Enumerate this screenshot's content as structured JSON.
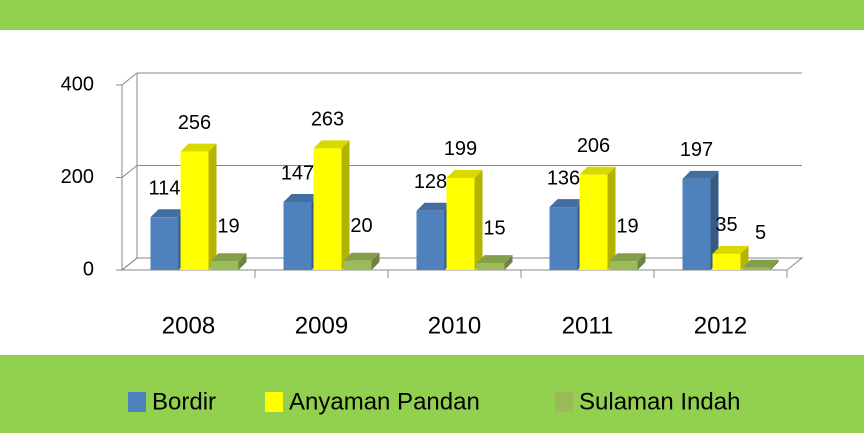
{
  "chart_data": {
    "type": "bar3d",
    "categories": [
      "2008",
      "2009",
      "2010",
      "2011",
      "2012"
    ],
    "series": [
      {
        "name": "Bordir",
        "color": "#4f81bd",
        "values": [
          114,
          147,
          128,
          136,
          197
        ]
      },
      {
        "name": "Anyaman Pandan",
        "color": "#ffff00",
        "values": [
          256,
          263,
          199,
          206,
          35
        ]
      },
      {
        "name": "Sulaman Indah",
        "color": "#9bbb59",
        "values": [
          19,
          20,
          15,
          19,
          5
        ]
      }
    ],
    "ylim": [
      0,
      400
    ],
    "yticks": [
      0,
      200,
      400
    ],
    "grid": true,
    "legend": "bottom"
  }
}
